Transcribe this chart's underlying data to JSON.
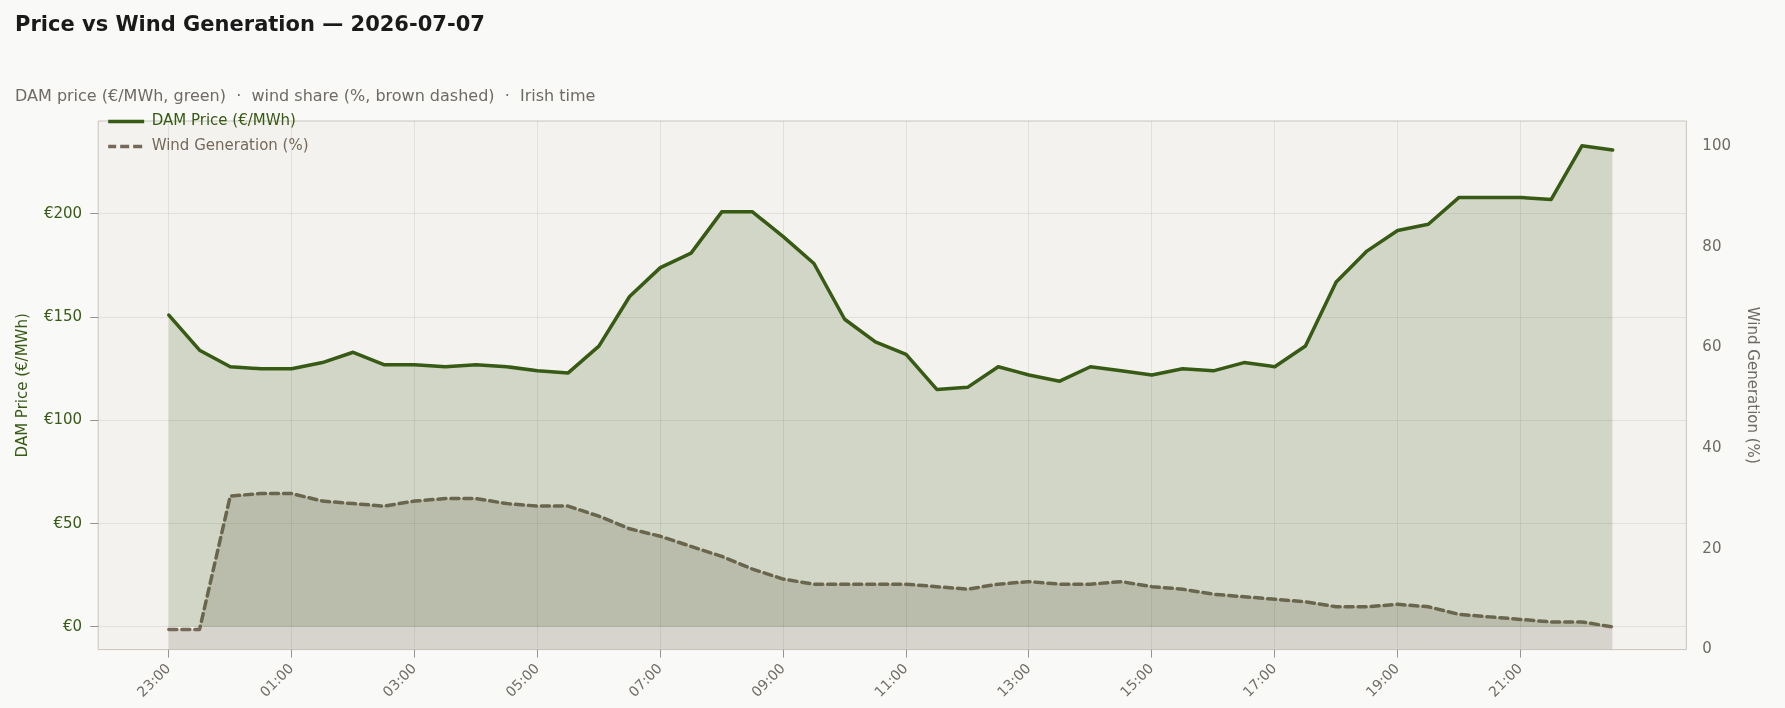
{
  "chart_data": {
    "type": "area",
    "title": "Price vs Wind Generation — 2026-07-07",
    "subtitle": "DAM price (€/MWh, green)  ·  wind share (%, brown dashed)  ·  Irish time",
    "ylabel": "DAM Price (€/MWh)",
    "y2label": "Wind Generation (%)",
    "categories": [
      "23:00",
      null,
      null,
      null,
      "01:00",
      null,
      null,
      null,
      "03:00",
      null,
      null,
      null,
      "05:00",
      null,
      null,
      null,
      "07:00",
      null,
      null,
      null,
      "09:00",
      null,
      null,
      null,
      "11:00",
      null,
      null,
      null,
      "13:00",
      null,
      null,
      null,
      "15:00",
      null,
      null,
      null,
      "17:00",
      null,
      null,
      null,
      "19:00",
      null,
      null,
      null,
      "21:00",
      null,
      null,
      null
    ],
    "series": [
      {
        "name": "DAM Price (€/MWh)",
        "color": "#375a14",
        "line_style": "solid",
        "values": [
          151,
          134,
          126,
          125,
          125,
          128,
          133,
          127,
          127,
          126,
          127,
          126,
          124,
          123,
          136,
          160,
          174,
          181,
          201,
          201,
          189,
          176,
          149,
          138,
          132,
          115,
          116,
          126,
          122,
          119,
          126,
          124,
          122,
          125,
          124,
          128,
          126,
          136,
          167,
          182,
          192,
          195,
          208,
          208,
          208,
          207,
          233,
          231
        ]
      },
      {
        "name": "Wind Generation (%)",
        "color": "#76695a",
        "line_style": "dashed",
        "axis": "y2",
        "values": [
          4,
          4,
          30.5,
          31,
          31,
          29.5,
          29,
          28.5,
          29.5,
          30,
          30,
          29,
          28.5,
          28.5,
          26.5,
          24,
          22.5,
          20.5,
          18.5,
          16,
          14,
          13,
          13,
          13,
          13,
          12.5,
          12,
          13,
          13.5,
          13,
          13,
          13.5,
          12.5,
          12,
          11,
          10.5,
          10,
          9.5,
          8.5,
          8.5,
          9,
          8.5,
          7,
          6.5,
          6,
          5.5,
          5.5,
          4.5
        ]
      }
    ],
    "ylim": [
      -11,
      245
    ],
    "yticks": [
      {
        "value": 0,
        "label": "€0"
      },
      {
        "value": 50,
        "label": "€50"
      },
      {
        "value": 100,
        "label": "€100"
      },
      {
        "value": 150,
        "label": "€150"
      },
      {
        "value": 200,
        "label": "€200"
      }
    ],
    "y2lim": [
      0,
      105
    ],
    "y2ticks": [
      0,
      20,
      40,
      60,
      80,
      100
    ],
    "grid": true,
    "legend": "top left"
  }
}
